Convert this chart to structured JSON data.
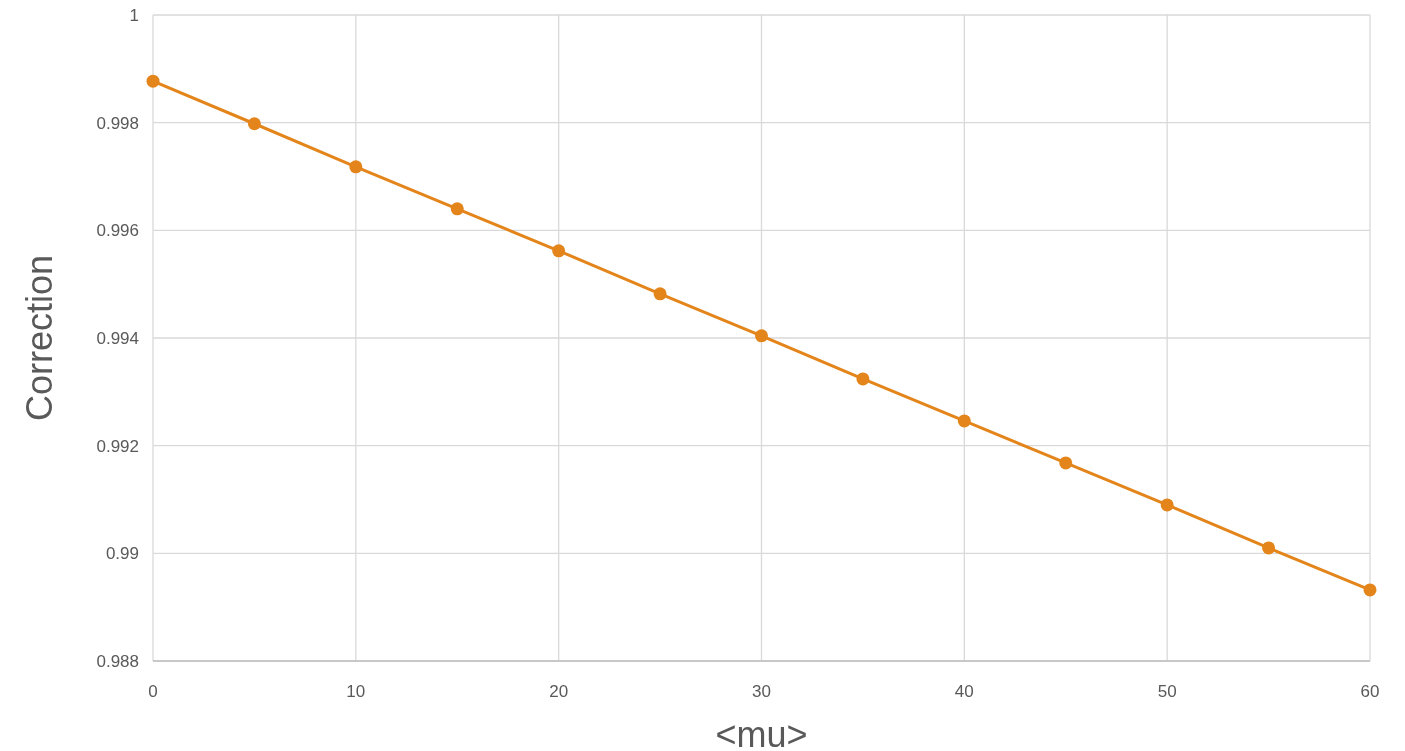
{
  "chart_data": {
    "type": "line",
    "xlabel": "<mu>",
    "ylabel": "Correction",
    "x": [
      0,
      5,
      10,
      15,
      20,
      25,
      30,
      35,
      40,
      45,
      50,
      55,
      60
    ],
    "series": [
      {
        "color": "#e3851b",
        "values": [
          0.99877,
          0.99798,
          0.99718,
          0.9964,
          0.99562,
          0.99482,
          0.99404,
          0.99324,
          0.99246,
          0.99168,
          0.9909,
          0.9901,
          0.98932
        ]
      }
    ],
    "xlim": [
      0,
      60
    ],
    "xticks": [
      0,
      10,
      20,
      30,
      40,
      50,
      60
    ],
    "ylim": [
      0.988,
      1
    ],
    "yticks": [
      0.988,
      0.99,
      0.992,
      0.994,
      0.996,
      0.998,
      1
    ],
    "grid": true,
    "marker": "circle",
    "line_style": "solid"
  }
}
